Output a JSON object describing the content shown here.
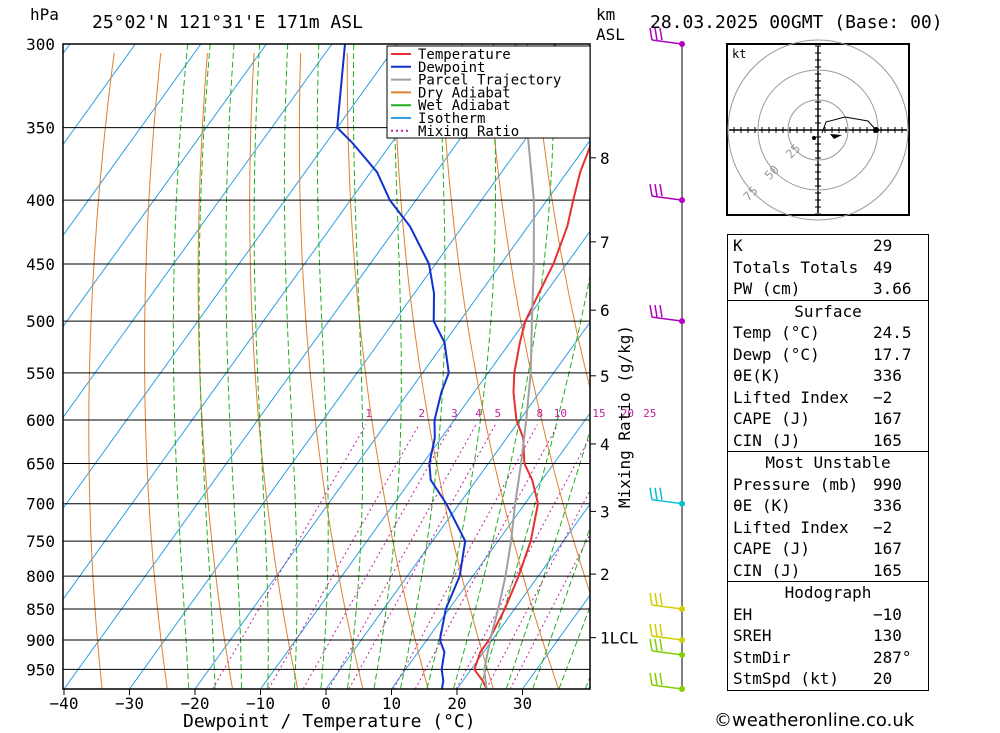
{
  "header": {
    "pressure_unit": "hPa",
    "location": "25°02'N  121°31'E  171m  ASL",
    "height_unit_line1": "km",
    "height_unit_line2": "ASL",
    "datetime": "28.03.2025  00GMT  (Base: 00)"
  },
  "colors": {
    "temperature": "#e83030",
    "dewpoint": "#1030d0",
    "parcel": "#a0a0a0",
    "dry_adiabat": "#e08030",
    "wet_adiabat": "#20b020",
    "isotherm": "#30a0e0",
    "mixing_ratio": "#c020a0",
    "wind_purple": "#b000c0",
    "wind_cyan": "#00c0d0",
    "wind_yellow": "#d0d000",
    "wind_green": "#80d000"
  },
  "chart_data": {
    "type": "line",
    "title": "",
    "xlabel": "Dewpoint / Temperature (°C)",
    "ylabel": "hPa",
    "mixing_ratio_label": "Mixing Ratio (g/kg)",
    "xlim": [
      -40,
      40
    ],
    "ylim": [
      985,
      300
    ],
    "x_ticks": [
      "−40",
      "−30",
      "−20",
      "−10",
      "0",
      "10",
      "20",
      "30"
    ],
    "x_tick_values": [
      -40,
      -30,
      -20,
      -10,
      0,
      10,
      20,
      30
    ],
    "pressure_levels": [
      300,
      350,
      400,
      450,
      500,
      550,
      600,
      650,
      700,
      750,
      800,
      850,
      900,
      950
    ],
    "pressure_labels": [
      "300",
      "350",
      "400",
      "450",
      "500",
      "550",
      "600",
      "650",
      "700",
      "750",
      "800",
      "850",
      "900",
      "950"
    ],
    "km_ticks": [
      {
        "label": "8",
        "p": 370
      },
      {
        "label": "7",
        "p": 432
      },
      {
        "label": "6",
        "p": 490
      },
      {
        "label": "5",
        "p": 553
      },
      {
        "label": "4",
        "p": 627
      },
      {
        "label": "3",
        "p": 710
      },
      {
        "label": "2",
        "p": 797
      },
      {
        "label": "1LCL",
        "p": 896
      }
    ],
    "mixing_ratio_values": [
      1,
      2,
      3,
      4,
      5,
      8,
      10,
      15,
      20,
      25
    ],
    "mixing_ratio_labels": [
      "1",
      "2",
      "3",
      "4",
      "5",
      "8",
      "10",
      "15",
      "20",
      "25"
    ],
    "legend": [
      "Temperature",
      "Dewpoint",
      "Parcel Trajectory",
      "Dry Adiabat",
      "Wet Adiabat",
      "Isotherm",
      "Mixing Ratio"
    ],
    "series": [
      {
        "name": "Temperature",
        "points": [
          [
            24.5,
            985
          ],
          [
            23,
            970
          ],
          [
            20.5,
            950
          ],
          [
            19.5,
            920
          ],
          [
            19.5,
            900
          ],
          [
            19,
            875
          ],
          [
            18.5,
            850
          ],
          [
            17,
            800
          ],
          [
            15,
            750
          ],
          [
            12,
            700
          ],
          [
            8.5,
            670
          ],
          [
            5.5,
            650
          ],
          [
            2.5,
            620
          ],
          [
            -0.5,
            600
          ],
          [
            -4,
            570
          ],
          [
            -6,
            550
          ],
          [
            -8.5,
            520
          ],
          [
            -10,
            500
          ],
          [
            -11,
            475
          ],
          [
            -12,
            450
          ],
          [
            -14,
            420
          ],
          [
            -16,
            400
          ],
          [
            -18,
            380
          ],
          [
            -19.5,
            360
          ],
          [
            -36,
            300
          ]
        ]
      },
      {
        "name": "Dewpoint",
        "points": [
          [
            17.7,
            985
          ],
          [
            17,
            970
          ],
          [
            15.5,
            950
          ],
          [
            14,
            920
          ],
          [
            12,
            900
          ],
          [
            9.5,
            850
          ],
          [
            8,
            800
          ],
          [
            5,
            750
          ],
          [
            -2,
            700
          ],
          [
            -7,
            670
          ],
          [
            -9,
            650
          ],
          [
            -11,
            620
          ],
          [
            -13,
            600
          ],
          [
            -15,
            570
          ],
          [
            -16,
            550
          ],
          [
            -20,
            520
          ],
          [
            -24,
            500
          ],
          [
            -27,
            475
          ],
          [
            -31,
            450
          ],
          [
            -38,
            420
          ],
          [
            -44,
            400
          ],
          [
            -49,
            380
          ],
          [
            -56,
            360
          ],
          [
            -60,
            350
          ],
          [
            -68,
            300
          ]
        ]
      },
      {
        "name": "Parcel Trajectory",
        "points": [
          [
            24.5,
            985
          ],
          [
            22,
            950
          ],
          [
            19.5,
            896
          ],
          [
            17.5,
            850
          ],
          [
            15,
            800
          ],
          [
            12,
            750
          ],
          [
            8.5,
            700
          ],
          [
            5,
            650
          ],
          [
            1,
            600
          ],
          [
            -3.5,
            550
          ],
          [
            -9,
            500
          ],
          [
            -15,
            450
          ],
          [
            -22,
            400
          ],
          [
            -31,
            350
          ],
          [
            -42,
            300
          ]
        ]
      }
    ]
  },
  "wind_barbs": [
    {
      "p": 300,
      "color": "purple"
    },
    {
      "p": 400,
      "color": "purple"
    },
    {
      "p": 500,
      "color": "purple"
    },
    {
      "p": 700,
      "color": "cyan"
    },
    {
      "p": 850,
      "color": "yellow"
    },
    {
      "p": 900,
      "color": "yellow"
    },
    {
      "p": 925,
      "color": "green"
    },
    {
      "p": 985,
      "color": "green"
    }
  ],
  "hodograph": {
    "unit": "kt",
    "rings": [
      "25",
      "50",
      "75"
    ]
  },
  "indices": {
    "k_label": "K",
    "k": "29",
    "tt_label": "Totals Totals",
    "tt": "49",
    "pw_label": "PW (cm)",
    "pw": "3.66",
    "surface_title": "Surface",
    "temp_label": "Temp (°C)",
    "temp": "24.5",
    "dewp_label": "Dewp (°C)",
    "dewp": "17.7",
    "theta_label": "θE(K)",
    "theta": "336",
    "li_label": "Lifted Index",
    "li": "−2",
    "cape_label": "CAPE (J)",
    "cape": "167",
    "cin_label": "CIN (J)",
    "cin": "165",
    "mu_title": "Most Unstable",
    "mu_p_label": "Pressure (mb)",
    "mu_p": "990",
    "mu_theta_label": "θE (K)",
    "mu_theta": "336",
    "mu_li_label": "Lifted Index",
    "mu_li": "−2",
    "mu_cape_label": "CAPE (J)",
    "mu_cape": "167",
    "mu_cin_label": "CIN (J)",
    "mu_cin": "165",
    "hodo_title": "Hodograph",
    "eh_label": "EH",
    "eh": "−10",
    "sreh_label": "SREH",
    "sreh": "130",
    "stmdir_label": "StmDir",
    "stmdir": "287°",
    "stmspd_label": "StmSpd (kt)",
    "stmspd": "20"
  },
  "copyright": "©weatheronline.co.uk"
}
